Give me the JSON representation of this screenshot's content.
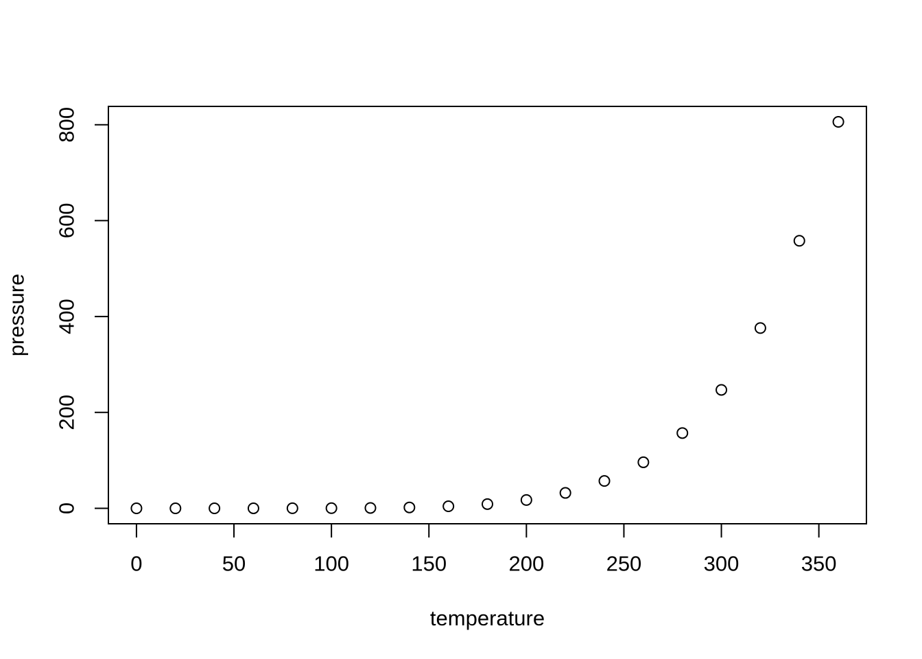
{
  "figure": {
    "background": "#ffffff",
    "foreground": "#000000"
  },
  "chart_data": {
    "type": "scatter",
    "title": "",
    "xlabel": "temperature",
    "ylabel": "pressure",
    "x": [
      0,
      20,
      40,
      60,
      80,
      100,
      120,
      140,
      160,
      180,
      200,
      220,
      240,
      260,
      280,
      300,
      320,
      340,
      360
    ],
    "y": [
      0.0002,
      0.0012,
      0.006,
      0.03,
      0.09,
      0.27,
      0.75,
      1.85,
      4.2,
      8.8,
      17.3,
      32.1,
      57,
      96,
      157,
      247,
      376,
      558,
      806
    ],
    "x_ticks": [
      0,
      50,
      100,
      150,
      200,
      250,
      300,
      350
    ],
    "y_ticks": [
      0,
      200,
      400,
      600,
      800
    ],
    "xlim": [
      -14.4,
      374.4
    ],
    "ylim": [
      -32.24,
      838.24
    ],
    "marker": "open-circle",
    "marker_color": "#000000",
    "grid": false,
    "legend": null
  }
}
